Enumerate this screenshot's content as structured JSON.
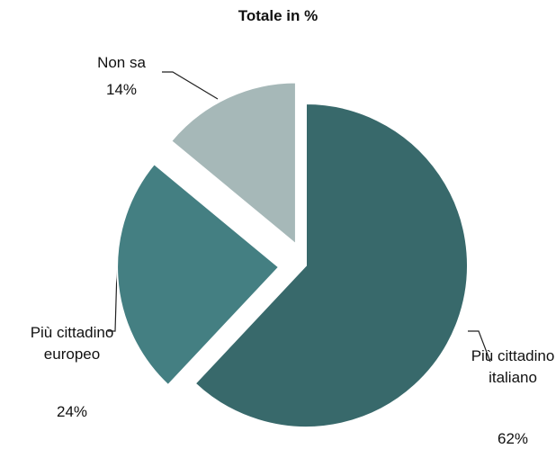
{
  "chart_data": {
    "type": "pie",
    "title": "Totale in %",
    "categories": [
      "Più cittadino italiano",
      "Più cittadino europeo",
      "Non sa"
    ],
    "values": [
      62,
      24,
      14
    ],
    "value_labels": [
      "62%",
      "24%",
      "14%"
    ],
    "colors": [
      "#38696b",
      "#447f82",
      "#a6b8b8"
    ]
  }
}
